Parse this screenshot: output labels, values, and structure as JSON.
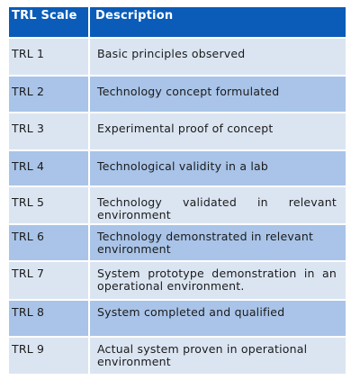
{
  "table": {
    "headers": [
      "TRL Scale",
      "Description"
    ],
    "rows": [
      {
        "level": "TRL 1",
        "description": "Basic principles observed"
      },
      {
        "level": "TRL 2",
        "description": "Technology concept formulated"
      },
      {
        "level": "TRL 3",
        "description": "Experimental proof of concept"
      },
      {
        "level": "TRL 4",
        "description": "Technological validity in a lab"
      },
      {
        "level": "TRL 5",
        "description": "Technology validated in relevant environment"
      },
      {
        "level": "TRL 6",
        "description": "Technology demonstrated in relevant environment"
      },
      {
        "level": "TRL 7",
        "description": "System prototype demonstration in an operational environment."
      },
      {
        "level": "TRL 8",
        "description": "System completed and qualified"
      },
      {
        "level": "TRL 9",
        "description": "Actual system proven in operational environment"
      }
    ]
  },
  "colors": {
    "header_bg": "#0a5cb8",
    "row_light": "#dbe5f2",
    "row_dark": "#a9c4e8"
  }
}
